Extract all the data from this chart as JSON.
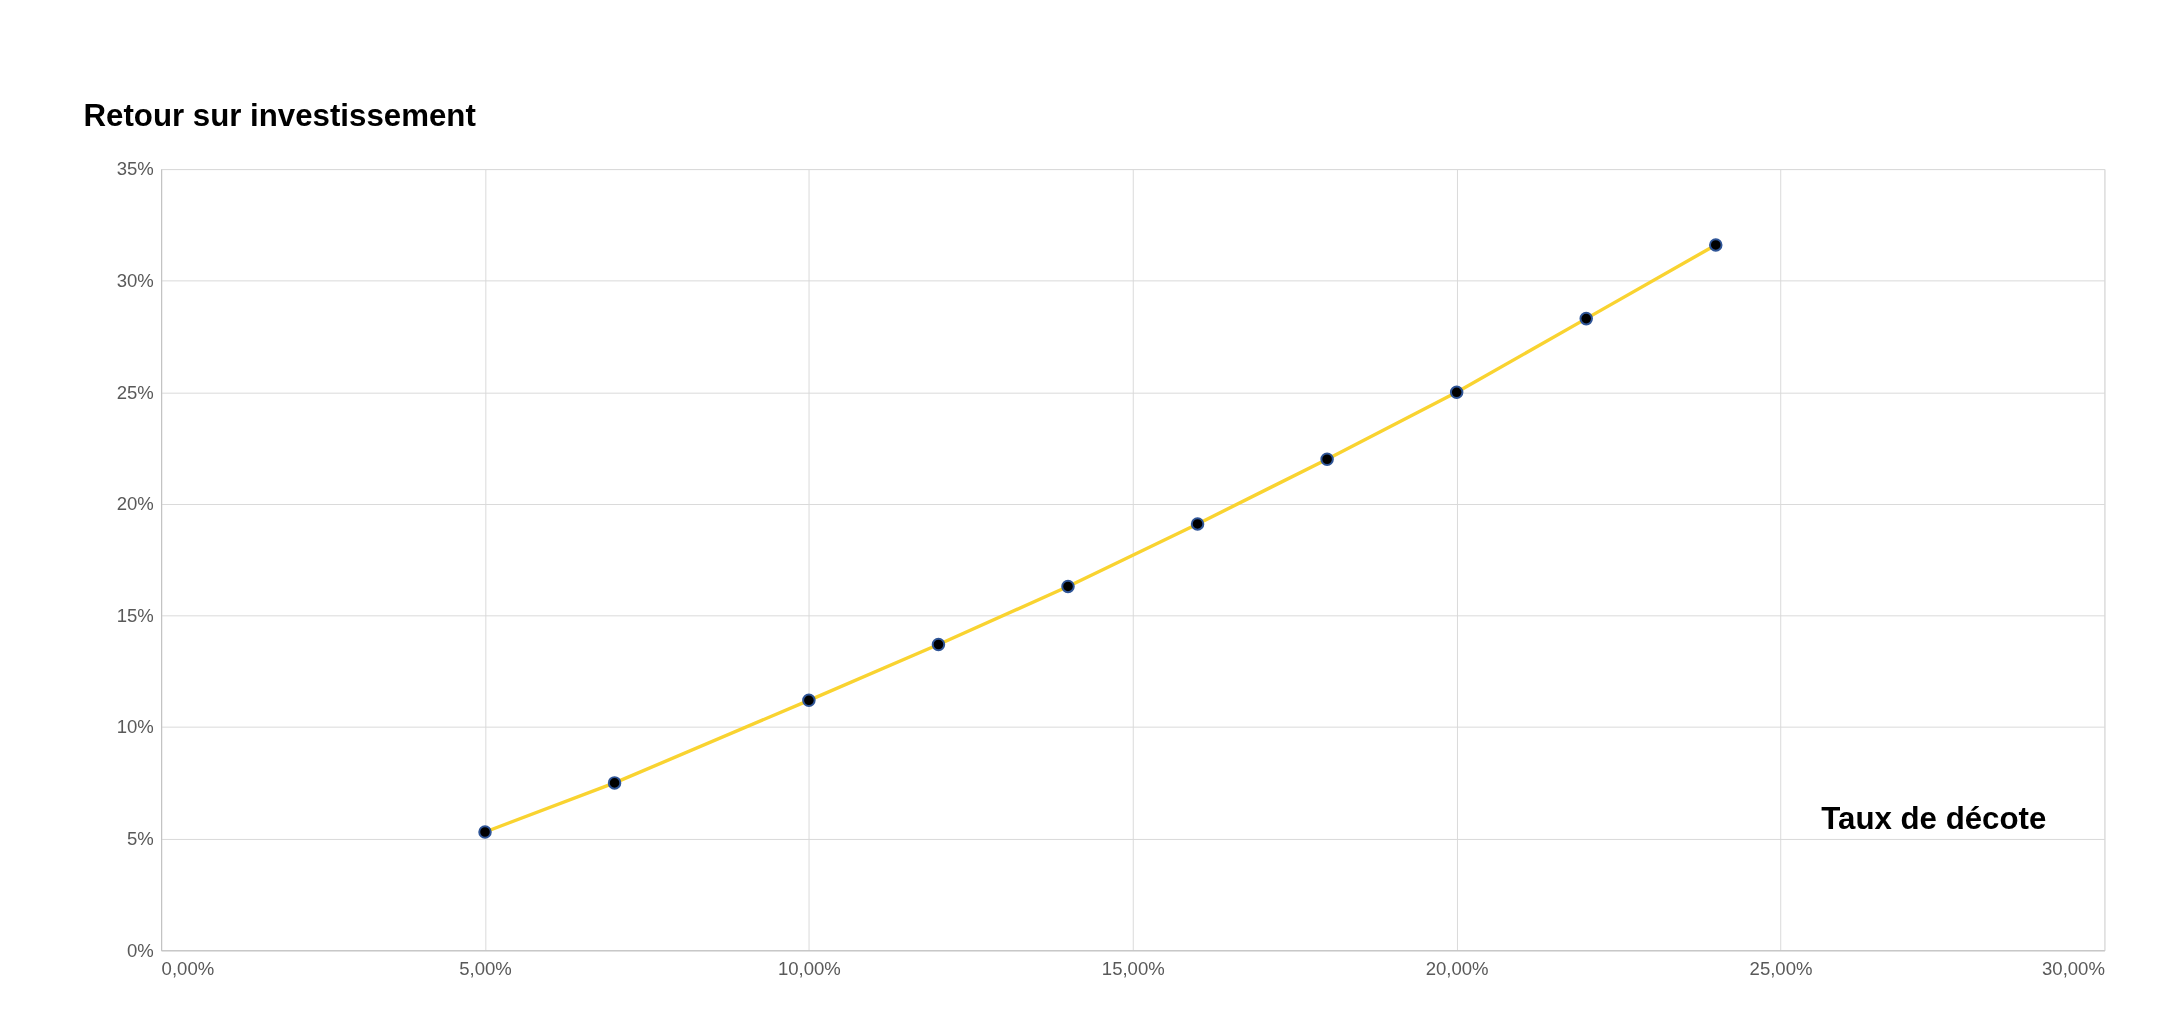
{
  "chart_data": {
    "type": "line",
    "xlabel": "Taux de décote",
    "ylabel": "Retour sur investissement",
    "x": [
      5,
      7,
      10,
      12,
      14,
      16,
      18,
      20,
      22,
      24
    ],
    "series": [
      {
        "color": "#f9d330",
        "values": [
          5.3,
          7.5,
          11.2,
          13.7,
          16.3,
          19.1,
          22.0,
          25.0,
          28.3,
          31.6
        ]
      }
    ],
    "xlim": [
      0,
      30
    ],
    "xticks": [
      {
        "value": 0,
        "label": "0,00%"
      },
      {
        "value": 5,
        "label": "5,00%"
      },
      {
        "value": 10,
        "label": "10,00%"
      },
      {
        "value": 15,
        "label": "15,00%"
      },
      {
        "value": 20,
        "label": "20,00%"
      },
      {
        "value": 25,
        "label": "25,00%"
      },
      {
        "value": 30,
        "label": "30,00%"
      }
    ],
    "ylim": [
      0,
      35
    ],
    "yticks": [
      {
        "value": 0,
        "label": "0%"
      },
      {
        "value": 5,
        "label": "5%"
      },
      {
        "value": 10,
        "label": "10%"
      },
      {
        "value": 15,
        "label": "15%"
      },
      {
        "value": 20,
        "label": "20%"
      },
      {
        "value": 25,
        "label": "25%"
      },
      {
        "value": 30,
        "label": "30%"
      },
      {
        "value": 35,
        "label": "35%"
      }
    ],
    "grid": true,
    "marker": "circle",
    "line_style": "solid"
  }
}
